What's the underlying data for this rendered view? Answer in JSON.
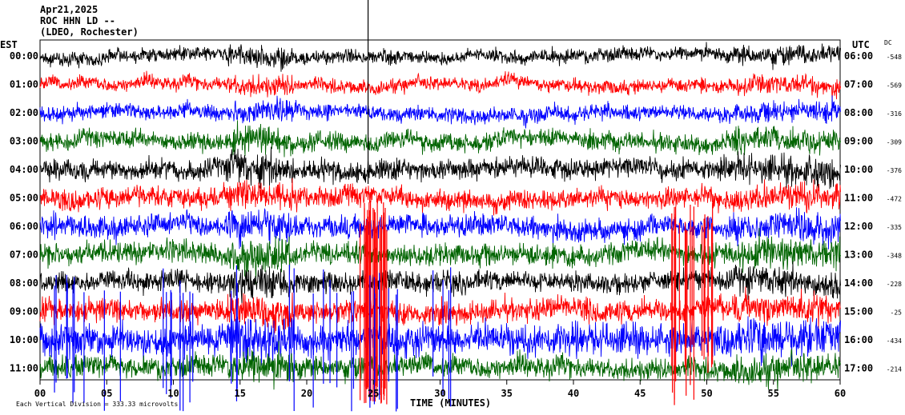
{
  "header": {
    "date": "Apr21,2025",
    "station": "ROC HHN LD --",
    "network": "(LDEO, Rochester)"
  },
  "chart_data": {
    "type": "line",
    "title": "",
    "left_axis_label": "EST",
    "right_axis_label": "UTC",
    "dc_label": "DC",
    "xlabel": "TIME (MINUTES)",
    "xlim": [
      0,
      60
    ],
    "x_ticks": [
      "00",
      "05",
      "10",
      "15",
      "20",
      "25",
      "30",
      "35",
      "40",
      "45",
      "50",
      "55",
      "60"
    ],
    "series_colors": [
      "#000000",
      "#ff0000",
      "#0000ff",
      "#006400"
    ],
    "footer_note": "Each Vertical Division = 333.33 microvolts",
    "rows": [
      {
        "est": "00:00",
        "utc": "06:00",
        "dc": "-548",
        "color": "#000000",
        "amp": 1.0
      },
      {
        "est": "01:00",
        "utc": "07:00",
        "dc": "-569",
        "color": "#ff0000",
        "amp": 1.0
      },
      {
        "est": "02:00",
        "utc": "08:00",
        "dc": "-316",
        "color": "#0000ff",
        "amp": 1.1
      },
      {
        "est": "03:00",
        "utc": "09:00",
        "dc": "-309",
        "color": "#006400",
        "amp": 1.3
      },
      {
        "est": "04:00",
        "utc": "10:00",
        "dc": "-376",
        "color": "#000000",
        "amp": 1.5
      },
      {
        "est": "05:00",
        "utc": "11:00",
        "dc": "-472",
        "color": "#ff0000",
        "amp": 1.5
      },
      {
        "est": "06:00",
        "utc": "12:00",
        "dc": "-335",
        "color": "#0000ff",
        "amp": 1.6
      },
      {
        "est": "07:00",
        "utc": "13:00",
        "dc": "-348",
        "color": "#006400",
        "amp": 1.6
      },
      {
        "est": "08:00",
        "utc": "14:00",
        "dc": "-228",
        "color": "#000000",
        "amp": 1.5
      },
      {
        "est": "09:00",
        "utc": "15:00",
        "dc": "-25",
        "color": "#ff0000",
        "amp": 1.6
      },
      {
        "est": "10:00",
        "utc": "16:00",
        "dc": "-434",
        "color": "#0000ff",
        "amp": 2.2
      },
      {
        "est": "11:00",
        "utc": "17:00",
        "dc": "-214",
        "color": "#006400",
        "amp": 1.6
      }
    ]
  }
}
